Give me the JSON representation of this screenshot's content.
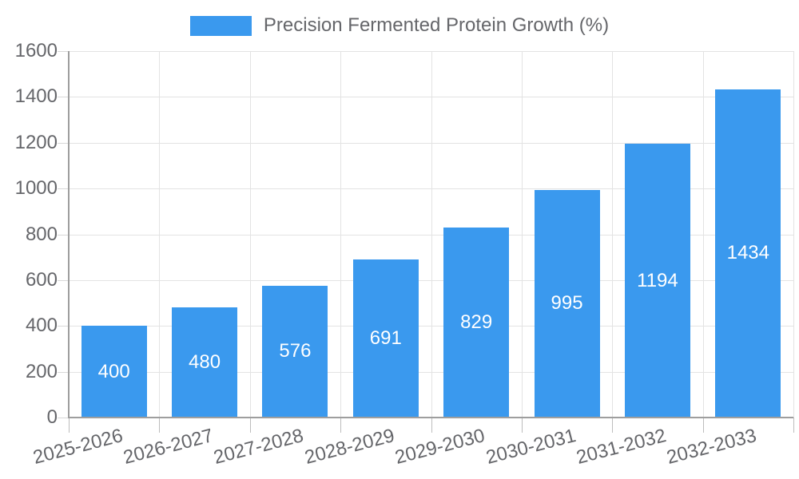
{
  "chart_data": {
    "type": "bar",
    "title": "",
    "legend_label": "Precision Fermented Protein Growth (%)",
    "legend_position": "top",
    "categories": [
      "2025-2026",
      "2026-2027",
      "2027-2028",
      "2028-2029",
      "2029-2030",
      "2030-2031",
      "2031-2032",
      "2032-2033"
    ],
    "values": [
      400,
      480,
      576,
      691,
      829,
      995,
      1194,
      1434
    ],
    "xlabel": "",
    "ylabel": "",
    "ylim": [
      0,
      1600
    ],
    "yticks": [
      0,
      200,
      400,
      600,
      800,
      1000,
      1200,
      1400,
      1600
    ],
    "grid": true,
    "bar_color": "#3a99ee",
    "bar_label_color": "#ffffff",
    "axis_line_color": "#9e9e9e",
    "grid_line_color": "#e3e3e3",
    "y_tick_mark_color": "#d8d8d8",
    "x_tick_mark_color": "#bdbdbd",
    "text_color": "#65666a"
  }
}
